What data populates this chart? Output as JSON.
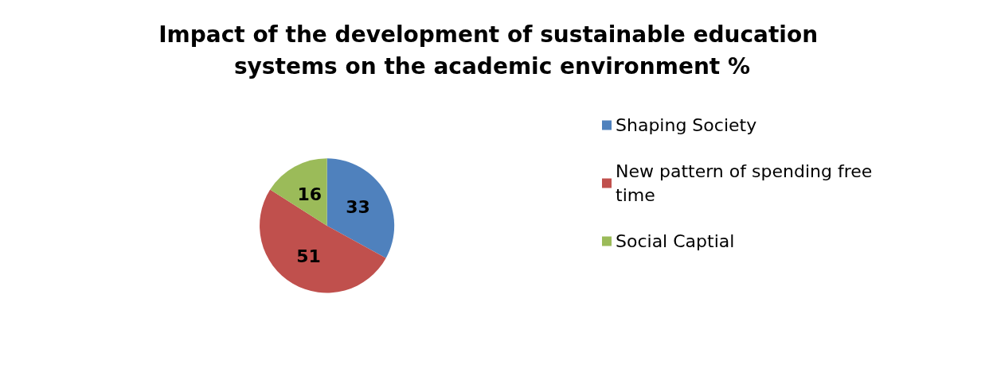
{
  "chart_data": {
    "type": "pie",
    "title": "Impact of the development of sustainable education systems on the academic environment %",
    "categories": [
      "Shaping Society",
      "New pattern of spending free time",
      "Social Captial"
    ],
    "values": [
      33,
      51,
      16
    ],
    "colors": [
      "#4f81bd",
      "#c0504d",
      "#9bbb59"
    ],
    "data_labels": true,
    "legend": "right"
  }
}
